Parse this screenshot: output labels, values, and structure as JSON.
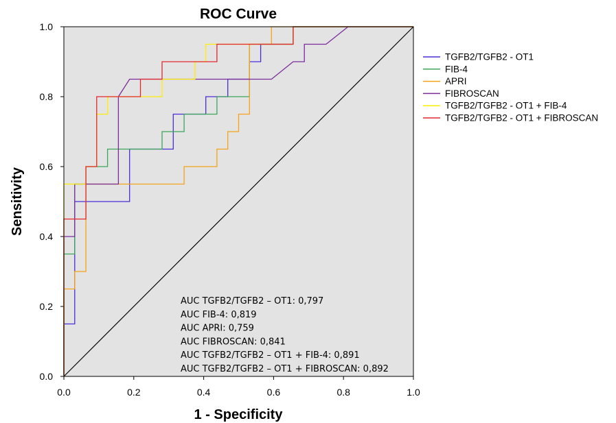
{
  "chart_data": {
    "type": "line",
    "title": "ROC Curve",
    "xlabel": "1 - Specificity",
    "ylabel": "Sensitivity",
    "xlim": [
      0,
      1
    ],
    "ylim": [
      0,
      1
    ],
    "xticks": [
      "0.0",
      "0.2",
      "0.4",
      "0.6",
      "0.8",
      "1.0"
    ],
    "yticks": [
      "0.0",
      "0.2",
      "0.4",
      "0.6",
      "0.8",
      "1.0"
    ],
    "grid": false,
    "legend_position": "right",
    "plot_background": "#e3e3e3",
    "reference_line": {
      "x": [
        0,
        1
      ],
      "y": [
        0,
        1
      ],
      "color": "#000000"
    },
    "series": [
      {
        "name": "TGFB2/TGFB2 - OT1",
        "color": "#4b2bd9",
        "points": [
          [
            0,
            0
          ],
          [
            0,
            0.15
          ],
          [
            0.031,
            0.15
          ],
          [
            0.031,
            0.5
          ],
          [
            0.188,
            0.5
          ],
          [
            0.188,
            0.65
          ],
          [
            0.313,
            0.65
          ],
          [
            0.313,
            0.75
          ],
          [
            0.406,
            0.75
          ],
          [
            0.406,
            0.8
          ],
          [
            0.469,
            0.8
          ],
          [
            0.469,
            0.85
          ],
          [
            0.531,
            0.85
          ],
          [
            0.531,
            0.9
          ],
          [
            0.563,
            0.9
          ],
          [
            0.563,
            0.95
          ],
          [
            0.656,
            0.95
          ],
          [
            0.656,
            1
          ],
          [
            1,
            1
          ]
        ]
      },
      {
        "name": "FIB-4",
        "color": "#3aa65a",
        "points": [
          [
            0,
            0
          ],
          [
            0,
            0.35
          ],
          [
            0.031,
            0.35
          ],
          [
            0.031,
            0.55
          ],
          [
            0.063,
            0.55
          ],
          [
            0.063,
            0.6
          ],
          [
            0.125,
            0.6
          ],
          [
            0.125,
            0.65
          ],
          [
            0.281,
            0.65
          ],
          [
            0.281,
            0.7
          ],
          [
            0.344,
            0.7
          ],
          [
            0.344,
            0.75
          ],
          [
            0.438,
            0.75
          ],
          [
            0.438,
            0.8
          ],
          [
            0.531,
            0.8
          ],
          [
            0.531,
            0.95
          ],
          [
            0.656,
            0.95
          ],
          [
            0.656,
            1
          ],
          [
            1,
            1
          ]
        ]
      },
      {
        "name": "APRI",
        "color": "#f5a31a",
        "points": [
          [
            0,
            0
          ],
          [
            0,
            0.25
          ],
          [
            0.031,
            0.25
          ],
          [
            0.031,
            0.3
          ],
          [
            0.063,
            0.3
          ],
          [
            0.063,
            0.55
          ],
          [
            0.344,
            0.55
          ],
          [
            0.344,
            0.6
          ],
          [
            0.438,
            0.6
          ],
          [
            0.438,
            0.65
          ],
          [
            0.469,
            0.65
          ],
          [
            0.469,
            0.7
          ],
          [
            0.5,
            0.7
          ],
          [
            0.5,
            0.75
          ],
          [
            0.531,
            0.75
          ],
          [
            0.531,
            0.95
          ],
          [
            0.594,
            0.95
          ],
          [
            0.594,
            1
          ],
          [
            1,
            1
          ]
        ]
      },
      {
        "name": "FIBROSCAN",
        "color": "#7a2b9a",
        "points": [
          [
            0,
            0
          ],
          [
            0,
            0.4
          ],
          [
            0.031,
            0.4
          ],
          [
            0.031,
            0.55
          ],
          [
            0.156,
            0.55
          ],
          [
            0.156,
            0.8
          ],
          [
            0.188,
            0.85
          ],
          [
            0.594,
            0.85
          ],
          [
            0.656,
            0.9
          ],
          [
            0.688,
            0.9
          ],
          [
            0.688,
            0.95
          ],
          [
            0.75,
            0.95
          ],
          [
            0.813,
            1
          ],
          [
            1,
            1
          ]
        ]
      },
      {
        "name": "TGFB2/TGFB2 - OT1 + FIB-4",
        "color": "#ffee00",
        "points": [
          [
            0,
            0
          ],
          [
            0,
            0.55
          ],
          [
            0.063,
            0.55
          ],
          [
            0.063,
            0.6
          ],
          [
            0.094,
            0.6
          ],
          [
            0.094,
            0.75
          ],
          [
            0.125,
            0.75
          ],
          [
            0.125,
            0.8
          ],
          [
            0.281,
            0.8
          ],
          [
            0.281,
            0.85
          ],
          [
            0.375,
            0.85
          ],
          [
            0.375,
            0.9
          ],
          [
            0.406,
            0.9
          ],
          [
            0.406,
            0.95
          ],
          [
            0.656,
            0.95
          ],
          [
            0.656,
            1
          ],
          [
            1,
            1
          ]
        ]
      },
      {
        "name": "TGFB2/TGFB2 - OT1 + FIBROSCAN",
        "color": "#e3272d",
        "points": [
          [
            0,
            0
          ],
          [
            0,
            0.45
          ],
          [
            0.063,
            0.45
          ],
          [
            0.063,
            0.6
          ],
          [
            0.094,
            0.6
          ],
          [
            0.094,
            0.8
          ],
          [
            0.219,
            0.8
          ],
          [
            0.219,
            0.85
          ],
          [
            0.281,
            0.85
          ],
          [
            0.281,
            0.9
          ],
          [
            0.438,
            0.9
          ],
          [
            0.438,
            0.95
          ],
          [
            0.656,
            0.95
          ],
          [
            0.656,
            1
          ],
          [
            1,
            1
          ]
        ]
      }
    ],
    "annotations": [
      "AUC TGFB2/TGFB2 – OT1: 0,797",
      "AUC FIB-4: 0,819",
      "AUC APRI: 0,759",
      "AUC FIBROSCAN: 0,841",
      "AUC TGFB2/TGFB2 – OT1 + FIB-4: 0,891",
      "AUC TGFB2/TGFB2 – OT1 + FIBROSCAN: 0,892"
    ]
  }
}
